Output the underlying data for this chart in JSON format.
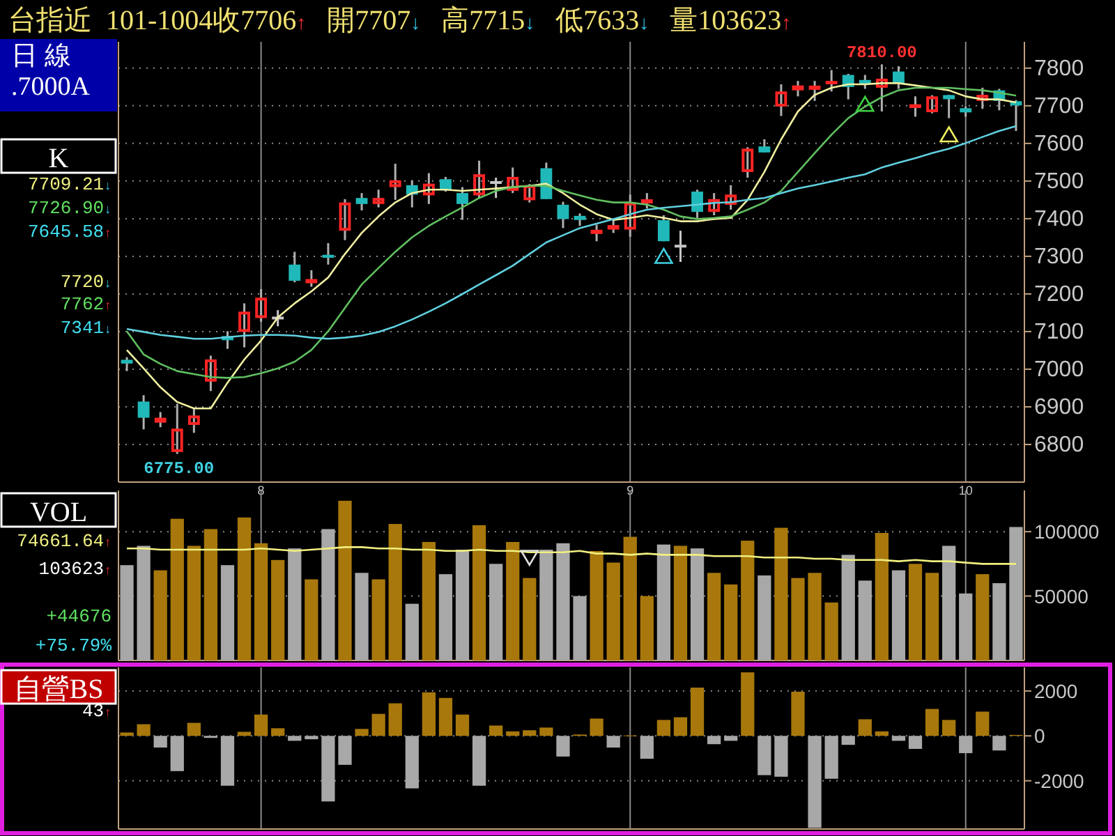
{
  "chart_data": [
    {
      "type": "candlestick",
      "title": "台指近  101-1004收7706↑   開7707↓   高7715↓   低7633↓   量103623↑",
      "ylabel": "K",
      "categories": [
        null,
        null,
        null,
        null,
        null,
        null,
        null,
        null,
        "8",
        null,
        null,
        null,
        null,
        null,
        null,
        null,
        null,
        null,
        null,
        null,
        null,
        null,
        null,
        null,
        null,
        null,
        null,
        null,
        null,
        null,
        "9",
        null,
        null,
        null,
        null,
        null,
        null,
        null,
        null,
        null,
        null,
        null,
        null,
        null,
        null,
        null,
        null,
        null,
        null,
        null,
        "10",
        null,
        null,
        null
      ],
      "ohlc": [
        [
          7025,
          7032,
          6995,
          7015
        ],
        [
          6914,
          6931,
          6840,
          6871
        ],
        [
          6858,
          6886,
          6846,
          6871
        ],
        [
          6780,
          6908,
          6775,
          6842
        ],
        [
          6852,
          6896,
          6831,
          6877
        ],
        [
          6967,
          7036,
          6942,
          7026
        ],
        [
          7085,
          7101,
          7054,
          7080
        ],
        [
          7099,
          7175,
          7058,
          7153
        ],
        [
          7136,
          7213,
          7126,
          7190
        ],
        [
          7136,
          7157,
          7114,
          7136
        ],
        [
          7278,
          7312,
          7231,
          7235
        ],
        [
          7232,
          7263,
          7219,
          7236
        ],
        [
          7304,
          7335,
          7278,
          7296
        ],
        [
          7368,
          7452,
          7343,
          7443
        ],
        [
          7455,
          7468,
          7422,
          7439
        ],
        [
          7439,
          7477,
          7430,
          7455
        ],
        [
          7484,
          7546,
          7450,
          7502
        ],
        [
          7489,
          7502,
          7430,
          7464
        ],
        [
          7462,
          7521,
          7439,
          7493
        ],
        [
          7505,
          7511,
          7472,
          7477
        ],
        [
          7468,
          7484,
          7397,
          7439
        ],
        [
          7462,
          7554,
          7455,
          7518
        ],
        [
          7496,
          7509,
          7455,
          7496
        ],
        [
          7474,
          7536,
          7468,
          7511
        ],
        [
          7449,
          7492,
          7443,
          7489
        ],
        [
          7534,
          7549,
          7452,
          7452
        ],
        [
          7437,
          7445,
          7375,
          7399
        ],
        [
          7404,
          7414,
          7381,
          7400
        ],
        [
          7363,
          7384,
          7340,
          7367
        ],
        [
          7371,
          7399,
          7362,
          7383
        ],
        [
          7371,
          7464,
          7352,
          7443
        ],
        [
          7444,
          7468,
          7427,
          7448
        ],
        [
          7396,
          7409,
          7340,
          7340
        ],
        [
          7327,
          7368,
          7285,
          7327
        ],
        [
          7472,
          7477,
          7402,
          7418
        ],
        [
          7418,
          7468,
          7409,
          7452
        ],
        [
          7437,
          7489,
          7424,
          7464
        ],
        [
          7524,
          7590,
          7509,
          7586
        ],
        [
          7592,
          7611,
          7576,
          7576
        ],
        [
          7698,
          7757,
          7673,
          7738
        ],
        [
          7741,
          7766,
          7725,
          7754
        ],
        [
          7746,
          7766,
          7713,
          7750
        ],
        [
          7757,
          7795,
          7738,
          7766
        ],
        [
          7782,
          7785,
          7717,
          7750
        ],
        [
          7765,
          7782,
          7745,
          7761
        ],
        [
          7748,
          7810,
          7685,
          7772
        ],
        [
          7791,
          7805,
          7745,
          7760
        ],
        [
          7694,
          7725,
          7671,
          7704
        ],
        [
          7683,
          7728,
          7680,
          7725
        ],
        [
          7725,
          7729,
          7667,
          7721
        ],
        [
          7690,
          7698,
          7671,
          7686
        ],
        [
          7713,
          7748,
          7692,
          7729
        ],
        [
          7741,
          7745,
          7688,
          7713
        ],
        [
          7707,
          7715,
          7633,
          7706
        ]
      ],
      "series": [
        {
          "type": "line",
          "color": "#f0f0a0",
          "values": [
            7051,
            7002,
            6952,
            6913,
            6896,
            6896,
            6964,
            7026,
            7076,
            7138,
            7175,
            7207,
            7244,
            7306,
            7362,
            7406,
            7443,
            7468,
            7477,
            7477,
            7474,
            7477,
            7480,
            7484,
            7487,
            7493,
            7468,
            7437,
            7412,
            7397,
            7402,
            7409,
            7402,
            7393,
            7393,
            7399,
            7402,
            7450,
            7524,
            7611,
            7685,
            7729,
            7748,
            7757,
            7757,
            7760,
            7760,
            7754,
            7748,
            7741,
            7725,
            7717,
            7717,
            7709
          ]
        },
        {
          "type": "line",
          "color": "#60c060",
          "values": [
            7101,
            7039,
            7014,
            6995,
            6987,
            6979,
            6977,
            6979,
            6989,
            7002,
            7020,
            7051,
            7101,
            7163,
            7225,
            7269,
            7312,
            7350,
            7381,
            7406,
            7430,
            7455,
            7474,
            7484,
            7487,
            7487,
            7474,
            7462,
            7450,
            7443,
            7443,
            7437,
            7424,
            7406,
            7399,
            7402,
            7406,
            7424,
            7443,
            7474,
            7524,
            7574,
            7623,
            7667,
            7698,
            7723,
            7741,
            7748,
            7748,
            7748,
            7744,
            7741,
            7735,
            7727
          ]
        },
        {
          "type": "line",
          "color": "#60d0e0",
          "values": [
            7107,
            7099,
            7091,
            7086,
            7081,
            7081,
            7085,
            7089,
            7091,
            7091,
            7089,
            7084,
            7081,
            7084,
            7089,
            7099,
            7114,
            7132,
            7153,
            7175,
            7200,
            7225,
            7250,
            7275,
            7306,
            7337,
            7356,
            7375,
            7387,
            7399,
            7412,
            7424,
            7429,
            7433,
            7437,
            7442,
            7444,
            7450,
            7455,
            7468,
            7480,
            7489,
            7499,
            7509,
            7518,
            7536,
            7549,
            7561,
            7574,
            7586,
            7601,
            7617,
            7633,
            7646
          ]
        },
        {
          "type": "scatter",
          "marker": "triangle",
          "color": "#40d0e0",
          "values": [
            null,
            null,
            null,
            null,
            null,
            null,
            null,
            null,
            null,
            null,
            null,
            null,
            null,
            null,
            null,
            null,
            null,
            null,
            null,
            null,
            null,
            null,
            null,
            null,
            null,
            null,
            null,
            null,
            null,
            null,
            null,
            null,
            7300,
            null,
            null,
            null,
            null,
            null,
            null,
            null,
            null,
            null,
            null,
            null,
            null,
            null,
            null,
            null,
            null,
            null,
            null,
            null,
            null,
            null
          ]
        },
        {
          "type": "scatter",
          "marker": "triangle",
          "color": "#40d040",
          "values": [
            null,
            null,
            null,
            null,
            null,
            null,
            null,
            null,
            null,
            null,
            null,
            null,
            null,
            null,
            null,
            null,
            null,
            null,
            null,
            null,
            null,
            null,
            null,
            null,
            null,
            null,
            null,
            null,
            null,
            null,
            null,
            null,
            null,
            null,
            null,
            null,
            null,
            null,
            null,
            null,
            null,
            null,
            null,
            null,
            7704,
            null,
            null,
            null,
            null,
            null,
            null,
            null,
            null,
            null
          ]
        },
        {
          "type": "scatter",
          "marker": "triangle",
          "color": "#f0f060",
          "values": [
            null,
            null,
            null,
            null,
            null,
            null,
            null,
            null,
            null,
            null,
            null,
            null,
            null,
            null,
            null,
            null,
            null,
            null,
            null,
            null,
            null,
            null,
            null,
            null,
            null,
            null,
            null,
            null,
            null,
            null,
            null,
            null,
            null,
            null,
            null,
            null,
            null,
            null,
            null,
            null,
            null,
            null,
            null,
            null,
            null,
            null,
            null,
            null,
            null,
            7623,
            null,
            null,
            null,
            null
          ]
        }
      ],
      "ylim": [
        6700,
        7870
      ],
      "yticks": [
        6800,
        6900,
        7000,
        7100,
        7200,
        7300,
        7400,
        7500,
        7600,
        7700,
        7800
      ],
      "grid": true,
      "annotations": [
        "日 線",
        ".7000A",
        "7709.21↓",
        "7726.90↓",
        "7645.58↑",
        "7720↓",
        "7762↑",
        "7341↓",
        {
          "text": "6775.00",
          "y": 6775
        },
        {
          "text": "7810.00",
          "y": 7810
        }
      ]
    },
    {
      "type": "bar",
      "ylabel": "VOL",
      "categories": [
        null,
        null,
        null,
        null,
        null,
        null,
        null,
        null,
        "8",
        null,
        null,
        null,
        null,
        null,
        null,
        null,
        null,
        null,
        null,
        null,
        null,
        null,
        null,
        null,
        null,
        null,
        null,
        null,
        null,
        null,
        "9",
        null,
        null,
        null,
        null,
        null,
        null,
        null,
        null,
        null,
        null,
        null,
        null,
        null,
        null,
        null,
        null,
        null,
        null,
        null,
        "10",
        null,
        null,
        null
      ],
      "values": [
        74000,
        89000,
        70000,
        110000,
        89000,
        102000,
        74000,
        111000,
        91000,
        78000,
        87000,
        63000,
        102000,
        124000,
        68000,
        63000,
        106000,
        44000,
        92000,
        67000,
        86000,
        105000,
        75000,
        92000,
        64000,
        86000,
        91000,
        50000,
        85000,
        76000,
        96000,
        50000,
        90000,
        89000,
        87000,
        68000,
        59000,
        93000,
        66000,
        103000,
        64000,
        68000,
        45000,
        82000,
        62000,
        99000,
        70000,
        75000,
        68000,
        89000,
        52000,
        67000,
        60000,
        103623
      ],
      "colors": [
        "#a8a8a8",
        "#a8a8a8",
        "#a8780c",
        "#a8780c",
        "#a8780c",
        "#a8780c",
        "#a8a8a8",
        "#a8780c",
        "#a8780c",
        "#a8780c",
        "#a8a8a8",
        "#a8780c",
        "#a8a8a8",
        "#a8780c",
        "#a8a8a8",
        "#a8780c",
        "#a8780c",
        "#a8a8a8",
        "#a8780c",
        "#a8a8a8",
        "#a8a8a8",
        "#a8780c",
        "#a8a8a8",
        "#a8780c",
        "#a8780c",
        "#a8a8a8",
        "#a8a8a8",
        "#a8a8a8",
        "#a8780c",
        "#a8780c",
        "#a8780c",
        "#a8780c",
        "#a8a8a8",
        "#a8780c",
        "#a8a8a8",
        "#a8780c",
        "#a8780c",
        "#a8780c",
        "#a8a8a8",
        "#a8780c",
        "#a8780c",
        "#a8780c",
        "#a8780c",
        "#a8a8a8",
        "#a8a8a8",
        "#a8780c",
        "#a8a8a8",
        "#a8780c",
        "#a8780c",
        "#a8a8a8",
        "#a8a8a8",
        "#a8780c",
        "#a8a8a8",
        "#a8a8a8"
      ],
      "series": [
        {
          "type": "line",
          "color": "#f0f080",
          "values": [
            87000,
            87000,
            86000,
            86000,
            86000,
            86000,
            86000,
            86000,
            87000,
            86000,
            85000,
            86000,
            87000,
            88000,
            88000,
            87000,
            87000,
            86000,
            86000,
            85000,
            85000,
            86000,
            85000,
            85000,
            84000,
            84000,
            84000,
            85000,
            83000,
            83000,
            82000,
            83000,
            82000,
            82000,
            82000,
            81000,
            81000,
            81000,
            80000,
            80000,
            80000,
            79000,
            79000,
            78000,
            78000,
            78000,
            77000,
            78000,
            77000,
            77000,
            76000,
            75000,
            75000,
            75000
          ]
        },
        {
          "type": "scatter",
          "marker": "triangle",
          "color": "#e0e0e0",
          "values": [
            null,
            null,
            null,
            null,
            null,
            null,
            null,
            null,
            null,
            null,
            null,
            null,
            null,
            null,
            null,
            null,
            null,
            null,
            null,
            null,
            null,
            null,
            null,
            null,
            80000,
            null,
            null,
            null,
            null,
            null,
            null,
            null,
            null,
            null,
            null,
            null,
            null,
            null,
            null,
            null,
            null,
            null,
            null,
            null,
            null,
            null,
            null,
            null,
            null,
            null,
            null,
            null,
            null,
            null
          ]
        }
      ],
      "ylim": [
        0,
        132000
      ],
      "yticks": [
        50000,
        100000
      ],
      "grid": true,
      "tick_labels": "y",
      "annotations": [
        "74661.64↑",
        "103623↑",
        "+44676",
        "+75.79%"
      ]
    },
    {
      "type": "bar",
      "ylabel": "自營BS",
      "categories": [
        null,
        null,
        null,
        null,
        null,
        null,
        null,
        null,
        "8",
        null,
        null,
        null,
        null,
        null,
        null,
        null,
        null,
        null,
        null,
        null,
        null,
        null,
        null,
        null,
        null,
        null,
        null,
        null,
        null,
        null,
        "9",
        null,
        null,
        null,
        null,
        null,
        null,
        null,
        null,
        null,
        null,
        null,
        null,
        null,
        null,
        null,
        null,
        null,
        null,
        null,
        "10",
        null,
        null,
        null
      ],
      "values": [
        150,
        520,
        -520,
        -1570,
        580,
        -90,
        -2220,
        180,
        950,
        340,
        -220,
        -150,
        -2920,
        -1290,
        310,
        980,
        1450,
        -2340,
        1940,
        1690,
        950,
        -2220,
        460,
        200,
        250,
        370,
        -920,
        60,
        770,
        -520,
        20,
        -1020,
        710,
        830,
        2150,
        -370,
        -220,
        2830,
        -1750,
        -1820,
        1970,
        -4100,
        -1910,
        -400,
        740,
        200,
        -220,
        -580,
        1200,
        710,
        -770,
        1080,
        -650,
        43
      ],
      "colors": [
        "#a8780c",
        "#a8780c",
        "#a8a8a8",
        "#a8a8a8",
        "#a8780c",
        "#a8a8a8",
        "#a8a8a8",
        "#a8780c",
        "#a8780c",
        "#a8780c",
        "#a8a8a8",
        "#a8a8a8",
        "#a8a8a8",
        "#a8a8a8",
        "#a8780c",
        "#a8780c",
        "#a8780c",
        "#a8a8a8",
        "#a8780c",
        "#a8780c",
        "#a8780c",
        "#a8a8a8",
        "#a8780c",
        "#a8780c",
        "#a8780c",
        "#a8780c",
        "#a8a8a8",
        "#a8780c",
        "#a8780c",
        "#a8a8a8",
        "#a8780c",
        "#a8a8a8",
        "#a8780c",
        "#a8780c",
        "#a8780c",
        "#a8a8a8",
        "#a8a8a8",
        "#a8780c",
        "#a8a8a8",
        "#a8a8a8",
        "#a8780c",
        "#a8a8a8",
        "#a8a8a8",
        "#a8a8a8",
        "#a8780c",
        "#a8780c",
        "#a8a8a8",
        "#a8a8a8",
        "#a8780c",
        "#a8780c",
        "#a8a8a8",
        "#a8780c",
        "#a8a8a8",
        "#a8780c"
      ],
      "ylim": [
        -4150,
        3050
      ],
      "yticks": [
        -2000,
        0,
        2000
      ],
      "grid": true,
      "tick_labels": "y",
      "annotations": [
        "43↑"
      ]
    }
  ]
}
